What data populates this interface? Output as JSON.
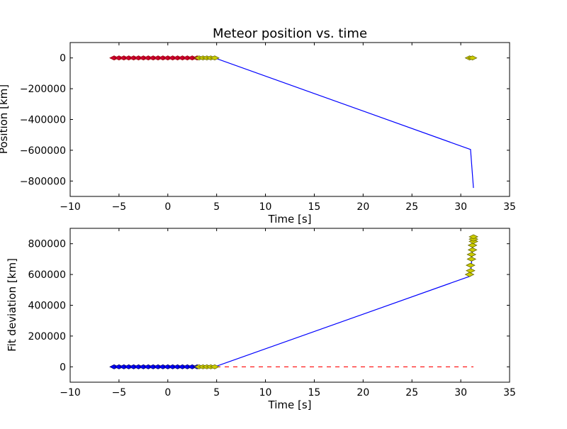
{
  "chart_data": [
    {
      "type": "line",
      "title": "Meteor position vs. time",
      "xlabel": "Time [s]",
      "ylabel": "Position [km]",
      "xlim": [
        -10,
        35
      ],
      "ylim": [
        -900000,
        100000
      ],
      "xticks": [
        -10,
        -5,
        0,
        5,
        10,
        15,
        20,
        25,
        30,
        35
      ],
      "xtick_labels": [
        "−10",
        "−5",
        "0",
        "5",
        "10",
        "15",
        "20",
        "25",
        "30",
        "35"
      ],
      "yticks": [
        0,
        -200000,
        -400000,
        -600000,
        -800000
      ],
      "ytick_labels": [
        "0",
        "−200000",
        "−400000",
        "−600000",
        "−800000"
      ],
      "grid": false,
      "series": [
        {
          "style": "line",
          "color": "#0000ff",
          "x": [
            -5.5,
            3.0,
            4.8,
            31.0,
            31.3
          ],
          "y": [
            0,
            0,
            0,
            -595000,
            -845000
          ]
        },
        {
          "style": "markers",
          "color": "#cc0033",
          "edge": "#990000",
          "x": [
            -5.5,
            -5.0,
            -4.5,
            -4.0,
            -3.5,
            -3.0,
            -2.5,
            -2.0,
            -1.5,
            -1.0,
            -0.5,
            0.0,
            0.5,
            1.0,
            1.5,
            2.0,
            2.5,
            3.0
          ],
          "y": [
            0,
            0,
            0,
            0,
            0,
            0,
            0,
            0,
            0,
            0,
            0,
            0,
            0,
            0,
            0,
            0,
            0,
            0
          ]
        },
        {
          "style": "markers",
          "color": "#cccc00",
          "edge": "#666600",
          "x": [
            3.2,
            3.6,
            4.0,
            4.4,
            4.8,
            30.9,
            31.2
          ],
          "y": [
            0,
            0,
            0,
            0,
            0,
            0,
            0
          ]
        }
      ]
    },
    {
      "type": "line",
      "title": "",
      "xlabel": "Time [s]",
      "ylabel": "Fit deviation [km]",
      "xlim": [
        -10,
        35
      ],
      "ylim": [
        -100000,
        900000
      ],
      "xticks": [
        -10,
        -5,
        0,
        5,
        10,
        15,
        20,
        25,
        30,
        35
      ],
      "xtick_labels": [
        "−10",
        "−5",
        "0",
        "5",
        "10",
        "15",
        "20",
        "25",
        "30",
        "35"
      ],
      "yticks": [
        0,
        200000,
        400000,
        600000,
        800000
      ],
      "ytick_labels": [
        "0",
        "200000",
        "400000",
        "600000",
        "800000"
      ],
      "grid": false,
      "series": [
        {
          "style": "line",
          "color": "#0000ff",
          "x": [
            -5.5,
            3.0,
            4.8,
            31.0,
            31.3
          ],
          "y": [
            0,
            0,
            0,
            590000,
            845000
          ]
        },
        {
          "style": "dashed",
          "color": "#ff0000",
          "x": [
            -5.5,
            31.3
          ],
          "y": [
            0,
            0
          ]
        },
        {
          "style": "markers",
          "color": "#0000ff",
          "edge": "#000066",
          "x": [
            -5.5,
            -5.0,
            -4.5,
            -4.0,
            -3.5,
            -3.0,
            -2.5,
            -2.0,
            -1.5,
            -1.0,
            -0.5,
            0.0,
            0.5,
            1.0,
            1.5,
            2.0,
            2.5,
            3.0
          ],
          "y": [
            0,
            0,
            0,
            0,
            0,
            0,
            0,
            0,
            0,
            0,
            0,
            0,
            0,
            0,
            0,
            0,
            0,
            0
          ]
        },
        {
          "style": "markers",
          "color": "#cccc00",
          "edge": "#666600",
          "x": [
            3.2,
            3.6,
            4.0,
            4.4,
            4.8,
            30.9,
            31.0,
            31.0,
            31.1,
            31.1,
            31.2,
            31.2,
            31.3,
            31.3,
            31.3
          ],
          "y": [
            0,
            0,
            0,
            0,
            0,
            600000,
            625000,
            660000,
            700000,
            730000,
            760000,
            790000,
            815000,
            830000,
            845000
          ]
        }
      ]
    }
  ]
}
